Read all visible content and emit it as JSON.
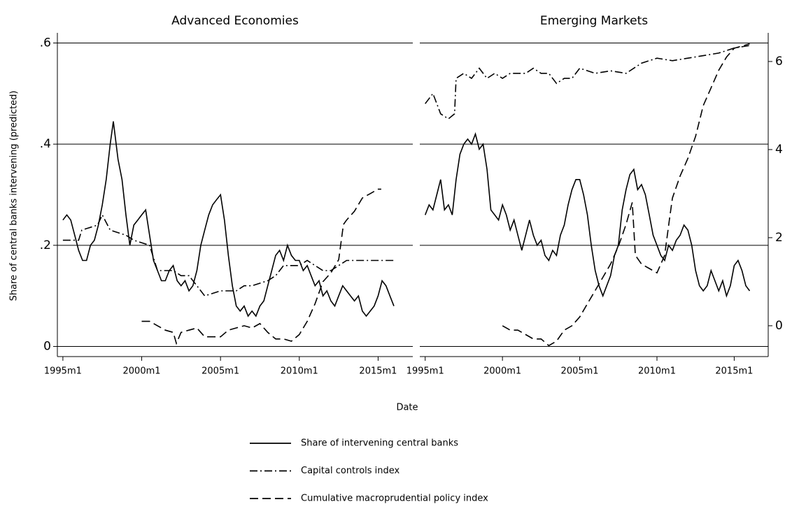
{
  "chart_data": {
    "type": "line",
    "xlabel": "Date",
    "ylabel": "Share of central banks intervening (predicted)",
    "xlim": [
      1994.65,
      2017.2
    ],
    "xticks": [
      {
        "value": 1995,
        "label": "1995m1"
      },
      {
        "value": 2000,
        "label": "2000m1"
      },
      {
        "value": 2005,
        "label": "2005m1"
      },
      {
        "value": 2010,
        "label": "2010m1"
      },
      {
        "value": 2015,
        "label": "2015m1"
      }
    ],
    "ylim": [
      -0.02,
      0.62
    ],
    "yticks": [
      0,
      {
        "value": 0.2,
        "label": ".2"
      },
      {
        "value": 0.4,
        "label": ".4"
      },
      {
        "value": 0.6,
        "label": ".6"
      }
    ],
    "y2lim": [
      -0.7,
      6.65
    ],
    "y2ticks": [
      0,
      2,
      4,
      6
    ],
    "grid": true,
    "legend_position": "bottom",
    "panels": [
      {
        "title": "Advanced Economies",
        "series": [
          {
            "name": "Share of intervening central banks",
            "color": "#000000",
            "dash": "solid",
            "x": [
              1995.0,
              1995.25,
              1995.5,
              1995.75,
              1996.0,
              1996.25,
              1996.5,
              1996.75,
              1997.0,
              1997.25,
              1997.5,
              1997.75,
              1998.0,
              1998.2,
              1998.5,
              1998.75,
              1999.0,
              1999.25,
              1999.5,
              1999.75,
              2000.0,
              2000.25,
              2000.5,
              2000.75,
              2001.0,
              2001.25,
              2001.5,
              2001.75,
              2002.0,
              2002.25,
              2002.5,
              2002.75,
              2003.0,
              2003.25,
              2003.5,
              2003.75,
              2004.0,
              2004.25,
              2004.5,
              2004.75,
              2005.0,
              2005.25,
              2005.5,
              2005.75,
              2006.0,
              2006.25,
              2006.5,
              2006.75,
              2007.0,
              2007.25,
              2007.5,
              2007.75,
              2008.0,
              2008.25,
              2008.5,
              2008.75,
              2009.0,
              2009.25,
              2009.5,
              2009.75,
              2010.0,
              2010.25,
              2010.5,
              2010.75,
              2011.0,
              2011.25,
              2011.5,
              2011.75,
              2012.0,
              2012.25,
              2012.5,
              2012.75,
              2013.0,
              2013.25,
              2013.5,
              2013.75,
              2014.0,
              2014.25,
              2014.5,
              2014.75,
              2015.0,
              2015.25,
              2015.5,
              2015.75,
              2016.0
            ],
            "values": [
              0.25,
              0.26,
              0.25,
              0.22,
              0.19,
              0.17,
              0.17,
              0.2,
              0.21,
              0.24,
              0.28,
              0.33,
              0.4,
              0.445,
              0.37,
              0.33,
              0.26,
              0.2,
              0.24,
              0.25,
              0.26,
              0.27,
              0.22,
              0.17,
              0.15,
              0.13,
              0.13,
              0.15,
              0.16,
              0.13,
              0.12,
              0.13,
              0.11,
              0.12,
              0.15,
              0.2,
              0.23,
              0.26,
              0.28,
              0.29,
              0.3,
              0.25,
              0.18,
              0.12,
              0.08,
              0.07,
              0.08,
              0.06,
              0.07,
              0.06,
              0.08,
              0.09,
              0.12,
              0.15,
              0.18,
              0.19,
              0.17,
              0.2,
              0.18,
              0.17,
              0.17,
              0.15,
              0.16,
              0.14,
              0.12,
              0.13,
              0.1,
              0.11,
              0.09,
              0.08,
              0.1,
              0.12,
              0.11,
              0.1,
              0.09,
              0.1,
              0.07,
              0.06,
              0.07,
              0.08,
              0.1,
              0.13,
              0.12,
              0.1,
              0.08
            ]
          },
          {
            "name": "Capital controls index",
            "color": "#000000",
            "dash": "dashdot",
            "x": [
              1995.0,
              1996.0,
              1996.2,
              1997.2,
              1997.5,
              1998.0,
              1999.0,
              1999.5,
              2000.5,
              2001.0,
              2002.0,
              2002.5,
              2003.0,
              2003.5,
              2004.0,
              2005.0,
              2006.0,
              2006.5,
              2007.0,
              2008.0,
              2008.5,
              2009.0,
              2010.0,
              2010.5,
              2011.0,
              2011.5,
              2012.0,
              2012.5,
              2013.0,
              2016.0
            ],
            "values": [
              0.21,
              0.21,
              0.23,
              0.24,
              0.26,
              0.23,
              0.22,
              0.21,
              0.2,
              0.15,
              0.15,
              0.14,
              0.14,
              0.12,
              0.1,
              0.11,
              0.11,
              0.12,
              0.12,
              0.13,
              0.14,
              0.16,
              0.16,
              0.17,
              0.16,
              0.15,
              0.15,
              0.16,
              0.17,
              0.17
            ]
          },
          {
            "name": "Cumulative macroprudential policy index",
            "color": "#000000",
            "dash": "dash",
            "axis": "y2",
            "x": [
              2000.0,
              2000.5,
              2001.0,
              2001.5,
              2002.0,
              2002.2,
              2002.5,
              2003.0,
              2003.5,
              2004.0,
              2005.0,
              2005.5,
              2006.5,
              2007.0,
              2007.5,
              2008.0,
              2008.5,
              2009.0,
              2009.5,
              2010.0,
              2010.5,
              2011.0,
              2011.5,
              2012.0,
              2012.5,
              2012.8,
              2013.0,
              2013.5,
              2014.0,
              2014.5,
              2015.0,
              2015.2
            ],
            "values": [
              0.1,
              0.1,
              0.0,
              -0.1,
              -0.15,
              -0.4,
              -0.15,
              -0.1,
              -0.05,
              -0.25,
              -0.25,
              -0.1,
              0.0,
              -0.05,
              0.05,
              -0.15,
              -0.3,
              -0.3,
              -0.35,
              -0.2,
              0.1,
              0.5,
              1.0,
              1.2,
              1.5,
              2.3,
              2.4,
              2.6,
              2.9,
              3.0,
              3.1,
              3.1
            ]
          }
        ]
      },
      {
        "title": "Emerging Markets",
        "series": [
          {
            "name": "Share of intervening central banks",
            "color": "#000000",
            "dash": "solid",
            "x": [
              1995.0,
              1995.25,
              1995.5,
              1995.75,
              1996.0,
              1996.25,
              1996.5,
              1996.75,
              1997.0,
              1997.25,
              1997.5,
              1997.75,
              1998.0,
              1998.25,
              1998.5,
              1998.75,
              1999.0,
              1999.25,
              1999.5,
              1999.75,
              2000.0,
              2000.25,
              2000.5,
              2000.75,
              2001.0,
              2001.25,
              2001.5,
              2001.75,
              2002.0,
              2002.25,
              2002.5,
              2002.75,
              2003.0,
              2003.25,
              2003.5,
              2003.75,
              2004.0,
              2004.25,
              2004.5,
              2004.75,
              2005.0,
              2005.25,
              2005.5,
              2005.75,
              2006.0,
              2006.25,
              2006.5,
              2006.75,
              2007.0,
              2007.25,
              2007.5,
              2007.75,
              2008.0,
              2008.25,
              2008.5,
              2008.75,
              2009.0,
              2009.25,
              2009.5,
              2009.75,
              2010.0,
              2010.25,
              2010.5,
              2010.75,
              2011.0,
              2011.25,
              2011.5,
              2011.75,
              2012.0,
              2012.25,
              2012.5,
              2012.75,
              2013.0,
              2013.25,
              2013.5,
              2013.75,
              2014.0,
              2014.25,
              2014.5,
              2014.75,
              2015.0,
              2015.25,
              2015.5,
              2015.75,
              2016.0
            ],
            "values": [
              0.26,
              0.28,
              0.27,
              0.3,
              0.33,
              0.27,
              0.28,
              0.26,
              0.33,
              0.38,
              0.4,
              0.41,
              0.4,
              0.42,
              0.39,
              0.4,
              0.35,
              0.27,
              0.26,
              0.25,
              0.28,
              0.26,
              0.23,
              0.25,
              0.22,
              0.19,
              0.22,
              0.25,
              0.22,
              0.2,
              0.21,
              0.18,
              0.17,
              0.19,
              0.18,
              0.22,
              0.24,
              0.28,
              0.31,
              0.33,
              0.33,
              0.3,
              0.26,
              0.2,
              0.15,
              0.12,
              0.1,
              0.12,
              0.14,
              0.18,
              0.2,
              0.27,
              0.31,
              0.34,
              0.35,
              0.31,
              0.32,
              0.3,
              0.26,
              0.22,
              0.2,
              0.18,
              0.17,
              0.2,
              0.19,
              0.21,
              0.22,
              0.24,
              0.23,
              0.2,
              0.15,
              0.12,
              0.11,
              0.12,
              0.15,
              0.13,
              0.11,
              0.13,
              0.1,
              0.12,
              0.16,
              0.17,
              0.15,
              0.12,
              0.11
            ]
          },
          {
            "name": "Capital controls index",
            "color": "#000000",
            "dash": "dashdot",
            "x": [
              1995.0,
              1995.5,
              1996.0,
              1996.5,
              1996.9,
              1997.0,
              1997.5,
              1998.0,
              1998.5,
              1999.0,
              1999.5,
              2000.0,
              2000.5,
              2001.0,
              2001.5,
              2002.0,
              2002.5,
              2003.0,
              2003.5,
              2004.0,
              2004.5,
              2005.0,
              2006.0,
              2007.0,
              2008.0,
              2008.5,
              2009.0,
              2010.0,
              2011.0,
              2012.0,
              2013.0,
              2014.0,
              2015.0,
              2016.0
            ],
            "values": [
              0.48,
              0.5,
              0.46,
              0.45,
              0.46,
              0.53,
              0.54,
              0.53,
              0.55,
              0.53,
              0.54,
              0.53,
              0.54,
              0.54,
              0.54,
              0.55,
              0.54,
              0.54,
              0.52,
              0.53,
              0.53,
              0.55,
              0.54,
              0.545,
              0.54,
              0.55,
              0.56,
              0.57,
              0.565,
              0.57,
              0.575,
              0.58,
              0.59,
              0.595
            ]
          },
          {
            "name": "Cumulative macroprudential policy index",
            "color": "#000000",
            "dash": "dash",
            "axis": "y2",
            "x": [
              2000.0,
              2000.5,
              2001.0,
              2001.5,
              2002.0,
              2002.5,
              2003.0,
              2003.5,
              2004.0,
              2004.5,
              2005.0,
              2005.5,
              2006.0,
              2006.5,
              2007.0,
              2007.5,
              2008.0,
              2008.4,
              2008.6,
              2009.0,
              2009.5,
              2010.0,
              2010.5,
              2010.8,
              2011.0,
              2011.5,
              2012.0,
              2012.5,
              2013.0,
              2013.5,
              2014.0,
              2014.5,
              2015.0,
              2016.0
            ],
            "values": [
              0.0,
              -0.1,
              -0.1,
              -0.2,
              -0.3,
              -0.3,
              -0.45,
              -0.35,
              -0.1,
              0.0,
              0.2,
              0.5,
              0.8,
              1.1,
              1.4,
              1.8,
              2.3,
              2.8,
              1.6,
              1.4,
              1.3,
              1.2,
              1.6,
              2.4,
              2.9,
              3.4,
              3.8,
              4.3,
              5.0,
              5.4,
              5.8,
              6.1,
              6.3,
              6.4
            ]
          }
        ]
      }
    ]
  }
}
